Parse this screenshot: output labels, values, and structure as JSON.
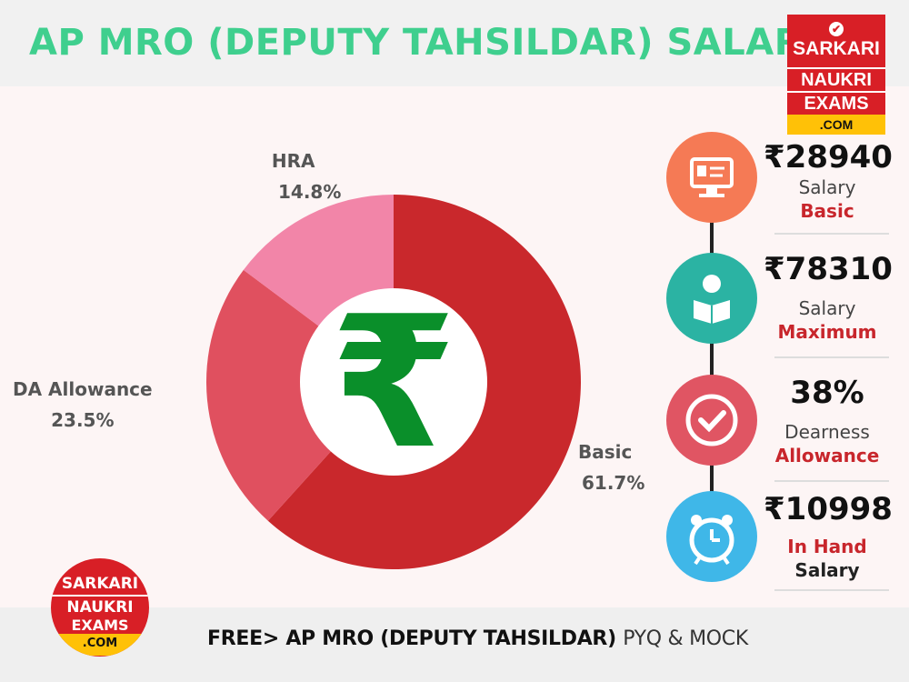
{
  "title": "AP MRO (DEPUTY TAHSILDAR) SALARY",
  "logo": {
    "line1": "SARKARI",
    "line2": "NAUKRI",
    "line3": "EXAMS",
    "line4": ".COM"
  },
  "center_symbol": "₹",
  "chart_data": {
    "type": "pie",
    "donut": true,
    "slices": [
      {
        "label": "Basic",
        "value": 61.7,
        "display": "61.7%",
        "color": "#c9282c"
      },
      {
        "label": "DA Allowance",
        "value": 23.5,
        "display": "23.5%",
        "color": "#e0505f"
      },
      {
        "label": "HRA",
        "value": 14.8,
        "display": "14.8%",
        "color": "#f285a8"
      }
    ]
  },
  "info": [
    {
      "value": "₹28940",
      "line1": "Salary",
      "line2": "Basic",
      "icon": "monitor-id-icon",
      "color": "#f57a55"
    },
    {
      "value": "₹78310",
      "line1": "Salary",
      "line2": "Maximum",
      "icon": "reading-person-icon",
      "color": "#2bb3a3"
    },
    {
      "value": "38%",
      "line1": "Dearness",
      "line2": "Allowance",
      "icon": "checkmark-icon",
      "color": "#e05563"
    },
    {
      "value": "₹10998",
      "line1": "In Hand",
      "line2": "Salary",
      "icon": "alarm-clock-icon",
      "color": "#3fb7e8"
    }
  ],
  "footer": {
    "main": "FREE> AP MRO (DEPUTY TAHSILDAR)",
    "tail": "PYQ & MOCK"
  }
}
